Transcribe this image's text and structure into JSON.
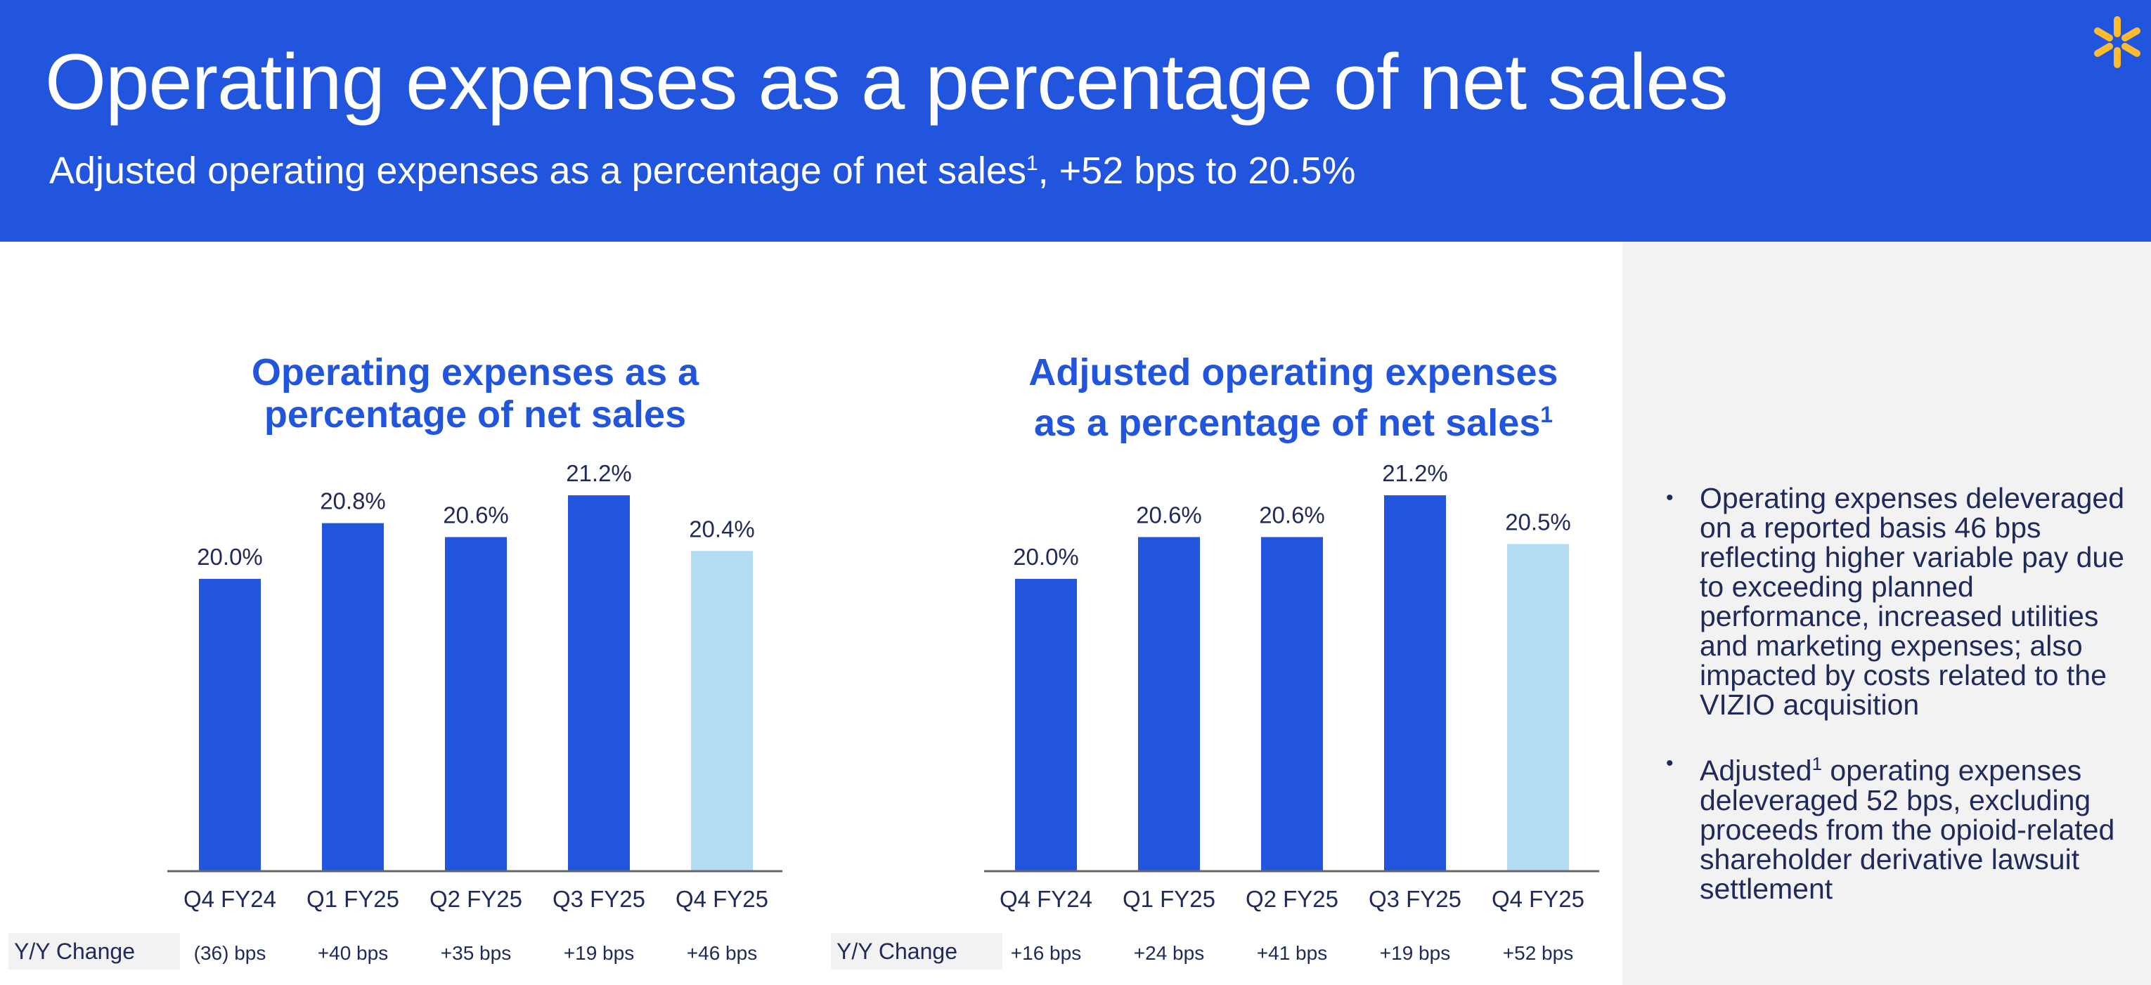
{
  "header": {
    "title": "Operating expenses as a percentage of net sales",
    "subtitle_text": "Adjusted operating expenses as a percentage of net sales",
    "subtitle_sup": "1",
    "subtitle_tail": ", +52 bps to 20.5%",
    "logo_icon": "spark-icon",
    "background": "#2255dd"
  },
  "colors": {
    "bar": "#2255dd",
    "bar_highlight": "#b3dcf2",
    "axis": "#666666"
  },
  "chart_data": [
    {
      "type": "bar",
      "title": "Operating expenses as a percentage of net sales",
      "categories": [
        "Q4 FY24",
        "Q1 FY25",
        "Q2 FY25",
        "Q3 FY25",
        "Q4 FY25"
      ],
      "values": [
        20.0,
        20.8,
        20.6,
        21.2,
        20.4
      ],
      "data_labels": [
        "20.0%",
        "20.8%",
        "20.6%",
        "21.2%",
        "20.4%"
      ],
      "yoy_header": "Y/Y Change",
      "yoy": [
        "(36) bps",
        "+40 bps",
        "+35 bps",
        "+19 bps",
        "+46 bps"
      ],
      "highlight_index": 4,
      "ylim": [
        15.8,
        21.2
      ]
    },
    {
      "type": "bar",
      "title": "Adjusted operating expenses as a percentage of net sales",
      "title_sup": "1",
      "categories": [
        "Q4 FY24",
        "Q1 FY25",
        "Q2 FY25",
        "Q3 FY25",
        "Q4 FY25"
      ],
      "values": [
        20.0,
        20.6,
        20.6,
        21.2,
        20.5
      ],
      "data_labels": [
        "20.0%",
        "20.6%",
        "20.6%",
        "21.2%",
        "20.5%"
      ],
      "yoy_header": "Y/Y Change",
      "yoy": [
        "+16 bps",
        "+24 bps",
        "+41 bps",
        "+19 bps",
        "+52 bps"
      ],
      "highlight_index": 4,
      "ylim": [
        15.8,
        21.2
      ]
    }
  ],
  "bullets": [
    {
      "text": "Operating expenses deleveraged on a reported basis 46 bps reflecting higher variable pay due to exceeding planned performance, increased utilities and marketing expenses; also impacted by costs related to the VIZIO acquisition"
    },
    {
      "prefix": "Adjusted",
      "sup": "1",
      "text": " operating expenses deleveraged 52 bps, excluding proceeds from the opioid-related shareholder derivative lawsuit settlement"
    }
  ],
  "bullet_marker": "•"
}
